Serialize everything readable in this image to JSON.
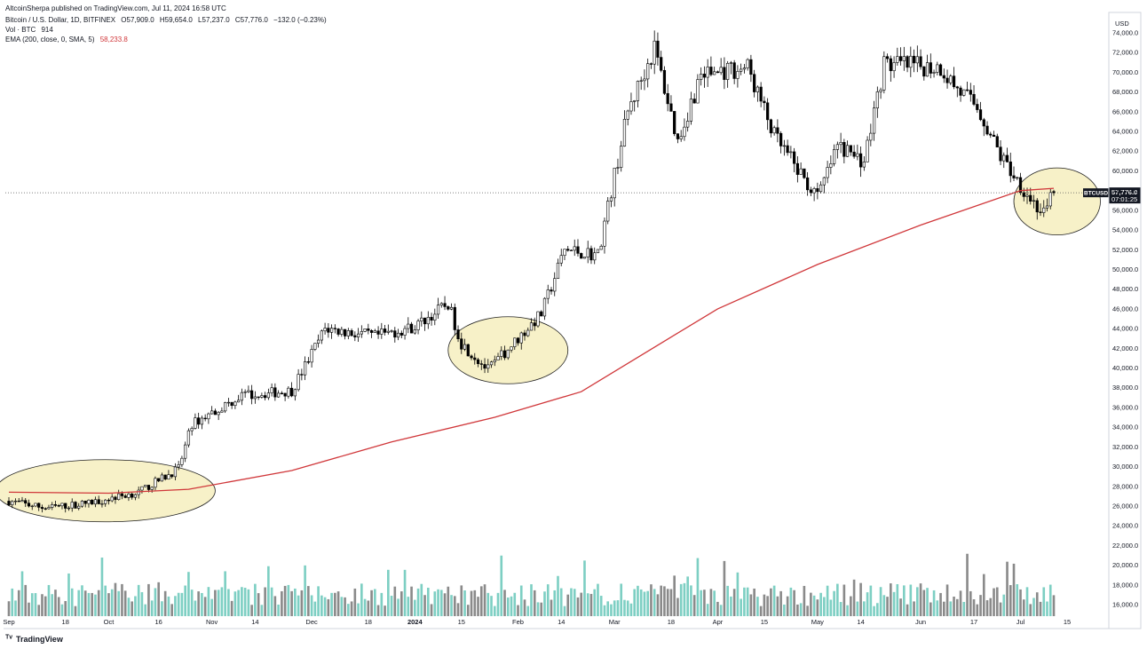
{
  "header": {
    "published": "AltcoinSherpa published on TradingView.com, Jul 11, 2024 16:58 UTC",
    "symbol": "Bitcoin / U.S. Dollar, 1D, BITFINEX",
    "ohlc": {
      "o": "O57,909.0",
      "h": "H59,654.0",
      "l": "L57,237.0",
      "c": "C57,776.0",
      "chg": "−132.0 (−0.23%)"
    },
    "vol_label": "Vol · BTC",
    "vol_value": "914",
    "ema_label": "EMA (200, close, 0, SMA, 5)",
    "ema_value": "58,233.8"
  },
  "price_axis": {
    "currency": "USD",
    "ticks": [
      "74,000.0",
      "72,000.0",
      "70,000.0",
      "68,000.0",
      "66,000.0",
      "64,000.0",
      "62,000.0",
      "60,000.0",
      "58,000.0",
      "56,000.0",
      "54,000.0",
      "52,000.0",
      "50,000.0",
      "48,000.0",
      "46,000.0",
      "44,000.0",
      "42,000.0",
      "40,000.0",
      "38,000.0",
      "36,000.0",
      "34,000.0",
      "32,000.0",
      "30,000.0",
      "28,000.0",
      "26,000.0",
      "24,000.0",
      "22,000.0",
      "20,000.0",
      "18,000.0",
      "16,000.0"
    ],
    "last_symbol": "BTCUSD",
    "last_price": "57,776.0",
    "countdown": "07:01:25"
  },
  "time_axis": {
    "labels": [
      "Sep",
      "18",
      "Oct",
      "16",
      "Nov",
      "14",
      "Dec",
      "18",
      "2024",
      "15",
      "Feb",
      "14",
      "Mar",
      "18",
      "Apr",
      "15",
      "May",
      "14",
      "Jun",
      "17",
      "Jul",
      "15"
    ]
  },
  "footer": {
    "brand": "TradingView"
  },
  "colors": {
    "bull": "#ffffff",
    "bear": "#000000",
    "ema": "#d0373a",
    "vol_up": "#7dcfc3",
    "vol_down": "#8a8a8a",
    "ellipse_fill": "#f7f1c8"
  },
  "chart_data": {
    "type": "candlestick",
    "x_range": [
      "2023-09-01",
      "2024-07-11"
    ],
    "y_range": [
      14500,
      74500
    ],
    "price_points": [
      [
        "2023-09-01",
        26500
      ],
      [
        "2023-09-12",
        25800
      ],
      [
        "2023-09-25",
        26300
      ],
      [
        "2023-10-10",
        27400
      ],
      [
        "2023-10-22",
        29800
      ],
      [
        "2023-10-26",
        34300
      ],
      [
        "2023-11-10",
        37200
      ],
      [
        "2023-11-25",
        37700
      ],
      [
        "2023-12-05",
        44000
      ],
      [
        "2023-12-20",
        43200
      ],
      [
        "2024-01-01",
        44200
      ],
      [
        "2024-01-11",
        46500
      ],
      [
        "2024-01-15",
        42500
      ],
      [
        "2024-01-23",
        39800
      ],
      [
        "2024-02-01",
        43000
      ],
      [
        "2024-02-08",
        45500
      ],
      [
        "2024-02-15",
        52000
      ],
      [
        "2024-02-25",
        51500
      ],
      [
        "2024-03-05",
        66000
      ],
      [
        "2024-03-13",
        72500
      ],
      [
        "2024-03-20",
        63000
      ],
      [
        "2024-03-27",
        69800
      ],
      [
        "2024-04-10",
        70500
      ],
      [
        "2024-04-18",
        63500
      ],
      [
        "2024-05-01",
        57200
      ],
      [
        "2024-05-07",
        62500
      ],
      [
        "2024-05-15",
        61000
      ],
      [
        "2024-05-21",
        70800
      ],
      [
        "2024-06-07",
        70500
      ],
      [
        "2024-06-12",
        68300
      ],
      [
        "2024-06-18",
        66500
      ],
      [
        "2024-06-25",
        61500
      ],
      [
        "2024-07-04",
        57200
      ],
      [
        "2024-07-08",
        55500
      ],
      [
        "2024-07-11",
        57776
      ]
    ],
    "ema_points": [
      [
        "2023-09-01",
        27400
      ],
      [
        "2023-10-01",
        27300
      ],
      [
        "2023-10-25",
        27700
      ],
      [
        "2023-11-25",
        29600
      ],
      [
        "2023-12-25",
        32500
      ],
      [
        "2024-01-25",
        35000
      ],
      [
        "2024-02-20",
        37600
      ],
      [
        "2024-03-10",
        41500
      ],
      [
        "2024-04-01",
        46000
      ],
      [
        "2024-05-01",
        50500
      ],
      [
        "2024-06-01",
        54500
      ],
      [
        "2024-07-01",
        58000
      ],
      [
        "2024-07-11",
        58233.8
      ]
    ],
    "volume_range": [
      0,
      70000
    ],
    "highlight_zones": [
      {
        "from": "2023-08-28",
        "to": "2023-11-02",
        "price_low": 24400,
        "price_high": 30700
      },
      {
        "from": "2024-01-11",
        "to": "2024-02-16",
        "price_low": 38400,
        "price_high": 45200
      },
      {
        "from": "2024-06-29",
        "to": "2024-07-25",
        "price_low": 53500,
        "price_high": 60300
      }
    ]
  }
}
